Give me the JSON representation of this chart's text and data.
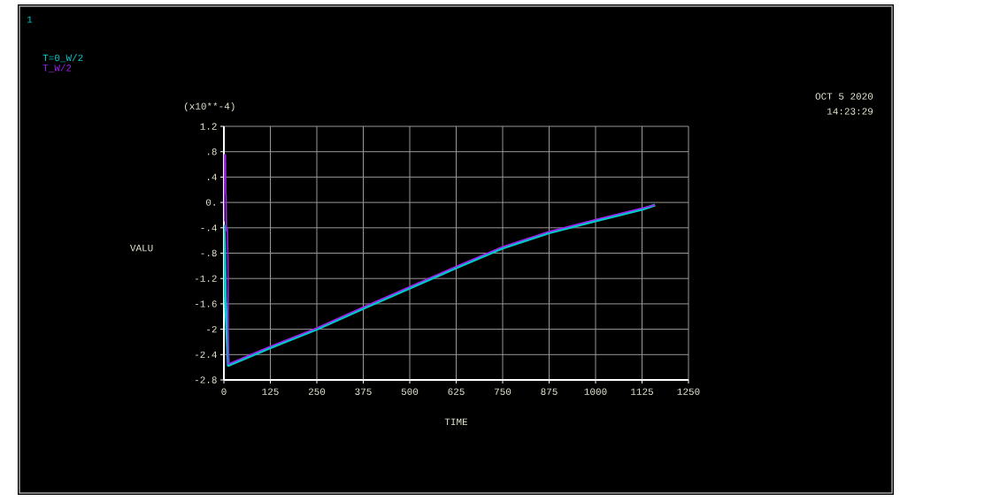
{
  "chart_data": {
    "type": "line",
    "xlabel": "TIME",
    "ylabel": "VALU",
    "annotations": [
      "1",
      "(x10**-4)",
      "OCT 5 2020",
      "14:23:29"
    ],
    "series": [
      {
        "name": "T=0_W/2",
        "color": "#00c8c8",
        "x": [
          0,
          2,
          4,
          12,
          125,
          250,
          375,
          500,
          625,
          750,
          875,
          1000,
          1125,
          1160
        ],
        "values": [
          -0.35,
          -0.7,
          -1.5,
          -2.57,
          -2.29,
          -2.0,
          -1.67,
          -1.35,
          -1.03,
          -0.72,
          -0.48,
          -0.29,
          -0.11,
          -0.04
        ]
      },
      {
        "name": "T_W/2",
        "color": "#a020f0",
        "x": [
          0,
          1,
          4,
          5,
          6,
          7,
          9,
          11,
          12,
          125,
          250,
          375,
          500,
          625,
          750,
          875,
          1000,
          1125,
          1160
        ],
        "values": [
          -0.3,
          0.75,
          0.75,
          0.15,
          0.1,
          -0.45,
          -0.4,
          -0.9,
          -2.55,
          -2.27,
          -1.98,
          -1.65,
          -1.33,
          -1.01,
          -0.7,
          -0.46,
          -0.27,
          -0.09,
          -0.04
        ]
      }
    ],
    "xlim": [
      0,
      1250
    ],
    "xticks": [
      0,
      125,
      250,
      375,
      500,
      625,
      750,
      875,
      1000,
      1125,
      1250
    ],
    "ylim": [
      -2.8,
      1.2
    ],
    "yticks": [
      {
        "value": 1.2,
        "label": "1.2"
      },
      {
        "value": 0.8,
        "label": ".8"
      },
      {
        "value": 0.4,
        "label": ".4"
      },
      {
        "value": 0,
        "label": "0."
      },
      {
        "value": -0.4,
        "label": "-.4"
      },
      {
        "value": -0.8,
        "label": "-.8"
      },
      {
        "value": -1.2,
        "label": "-1.2"
      },
      {
        "value": -1.6,
        "label": "-1.6"
      },
      {
        "value": -2,
        "label": "-2"
      },
      {
        "value": -2.4,
        "label": "-2.4"
      },
      {
        "value": -2.8,
        "label": "-2.8"
      }
    ],
    "grid": true,
    "legend": "top left",
    "line_style": "solid"
  }
}
